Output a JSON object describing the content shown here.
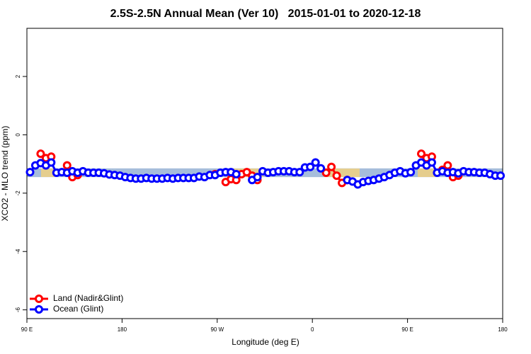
{
  "chart_data": {
    "type": "line",
    "title": "2.5S-2.5N Annual Mean (Ver 10)   2015-01-01 to 2020-12-18",
    "xlabel": "Longitude (deg E)",
    "ylabel": "XCO2 - MLO trend (ppm)",
    "xlim": [
      -270,
      180
    ],
    "xticks": [
      {
        "value": -270,
        "label": "90 E"
      },
      {
        "value": -180,
        "label": "180"
      },
      {
        "value": -90,
        "label": "90 W"
      },
      0,
      {
        "value": 90,
        "label": "90 E"
      },
      180
    ],
    "ylim": [
      -6.3,
      3.65
    ],
    "yticks": [
      -6,
      -4,
      -2,
      0,
      2
    ],
    "band": [
      -1.45,
      -1.15
    ],
    "band_color": "#a6bddb",
    "legend": "lower left",
    "x": [
      -267,
      -262,
      -257,
      -252,
      -247,
      -242,
      -237,
      -232,
      -227,
      -222,
      -217,
      -212,
      -207,
      -202,
      -197,
      -192,
      -187,
      -182,
      -177,
      -172,
      -167,
      -162,
      -157,
      -152,
      -147,
      -142,
      -137,
      -132,
      -127,
      -122,
      -117,
      -112,
      -107,
      -102,
      -97,
      -92,
      -87,
      -82,
      -77,
      -72,
      -67,
      -62,
      -57,
      -52,
      -47,
      -42,
      -37,
      -32,
      -27,
      -22,
      -17,
      -12,
      -7,
      -2,
      3,
      8,
      13,
      18,
      23,
      28,
      33,
      38,
      43,
      48,
      53,
      58,
      63,
      68,
      73,
      78,
      83,
      88,
      93,
      98,
      103,
      108,
      113,
      118,
      123,
      128,
      133,
      138,
      143,
      148,
      153,
      158,
      163,
      168,
      173,
      178
    ],
    "series": [
      {
        "name": "Land (Nadir&Glint)",
        "color": "#ff0000",
        "values": [
          null,
          null,
          -0.65,
          -0.8,
          -0.75,
          null,
          null,
          -1.05,
          -1.45,
          -1.38,
          null,
          null,
          null,
          null,
          null,
          null,
          null,
          null,
          null,
          null,
          null,
          null,
          null,
          null,
          null,
          null,
          null,
          null,
          null,
          null,
          null,
          null,
          null,
          null,
          null,
          -1.35,
          null,
          -1.62,
          -1.52,
          -1.55,
          -1.35,
          -1.28,
          -1.4,
          -1.55,
          null,
          null,
          null,
          null,
          null,
          null,
          null,
          null,
          null,
          null,
          null,
          null,
          -1.3,
          -1.1,
          -1.4,
          -1.65,
          -1.55,
          null,
          null,
          null,
          null,
          null,
          null,
          null,
          null,
          null,
          null,
          null,
          null,
          null,
          -0.65,
          -0.8,
          -0.75,
          null,
          -1.2,
          -1.05,
          -1.45,
          -1.4,
          null,
          null,
          null,
          null,
          null,
          null,
          null,
          null
        ]
      },
      {
        "name": "Ocean (Glint)",
        "color": "#0000ff",
        "values": [
          -1.28,
          -1.05,
          -0.97,
          -1.05,
          -0.95,
          -1.3,
          -1.28,
          -1.3,
          -1.25,
          -1.3,
          -1.25,
          -1.3,
          -1.3,
          -1.3,
          -1.32,
          -1.36,
          -1.38,
          -1.4,
          -1.45,
          -1.48,
          -1.5,
          -1.5,
          -1.48,
          -1.5,
          -1.5,
          -1.5,
          -1.48,
          -1.5,
          -1.48,
          -1.48,
          -1.48,
          -1.48,
          -1.43,
          -1.45,
          -1.38,
          -1.38,
          -1.3,
          -1.28,
          -1.28,
          -1.35,
          null,
          null,
          -1.55,
          -1.45,
          -1.25,
          -1.3,
          -1.28,
          -1.25,
          -1.25,
          -1.25,
          -1.28,
          -1.28,
          -1.12,
          -1.1,
          -0.95,
          -1.15,
          null,
          null,
          null,
          null,
          -1.55,
          -1.6,
          -1.7,
          -1.62,
          -1.58,
          -1.55,
          -1.5,
          -1.45,
          -1.38,
          -1.3,
          -1.25,
          -1.32,
          -1.28,
          -1.05,
          -0.95,
          -1.05,
          -0.95,
          -1.3,
          -1.25,
          -1.3,
          -1.28,
          -1.32,
          -1.25,
          -1.28,
          -1.28,
          -1.3,
          -1.3,
          -1.35,
          -1.4,
          -1.4
        ]
      }
    ]
  }
}
